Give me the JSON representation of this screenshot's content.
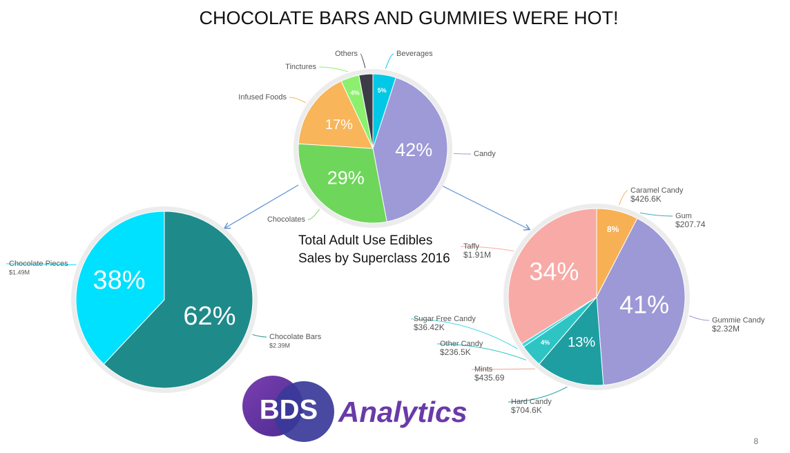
{
  "title": "CHOCOLATE BARS AND GUMMIES WERE HOT!",
  "chart_data": [
    {
      "type": "pie",
      "title": "Total Adult Use Edibles Sales by Superclass 2016",
      "categories": [
        "Beverages",
        "Candy",
        "Chocolates",
        "Infused Foods",
        "Tinctures",
        "Others"
      ],
      "values": [
        5,
        42,
        29,
        17,
        4,
        3
      ],
      "value_labels": [
        "5%",
        "42%",
        "29%",
        "17%",
        "4%",
        null
      ],
      "colors": [
        "#00c8e6",
        "#9e9ad8",
        "#6ed65a",
        "#f8b55a",
        "#8cf06e",
        "#3c3c46"
      ]
    },
    {
      "type": "pie",
      "categories": [
        "Chocolate Bars",
        "Chocolate Pieces"
      ],
      "values": [
        62,
        38
      ],
      "value_labels": [
        "62%",
        "38%"
      ],
      "amount_labels": [
        "$2.39M",
        "$1.49M"
      ],
      "colors": [
        "#1f8a8a",
        "#00e0ff"
      ]
    },
    {
      "type": "pie",
      "categories": [
        "Caramel Candy",
        "Gum",
        "Gummie Candy",
        "Hard Candy",
        "Mints",
        "Other Candy",
        "Sugar Free Candy",
        "Taffy"
      ],
      "values": [
        7.6,
        0.004,
        41.2,
        12.5,
        0.008,
        4.2,
        0.65,
        33.9
      ],
      "value_labels": [
        "8%",
        null,
        "41%",
        "13%",
        null,
        "4%",
        null,
        "34%"
      ],
      "amount_labels": [
        "$426.6K",
        "$207.74",
        "$2.32M",
        "$704.6K",
        "$435.69",
        "$236.5K",
        "$36.42K",
        "$1.91M"
      ],
      "colors": [
        "#f7b054",
        "#2a9fc0",
        "#9d98d6",
        "#1e9ea0",
        "#f0a090",
        "#2ec4c4",
        "#3dd8e0",
        "#f8aaa6"
      ]
    }
  ],
  "logo": {
    "initials": "BDS",
    "name": "Analytics"
  },
  "page_number": "8"
}
